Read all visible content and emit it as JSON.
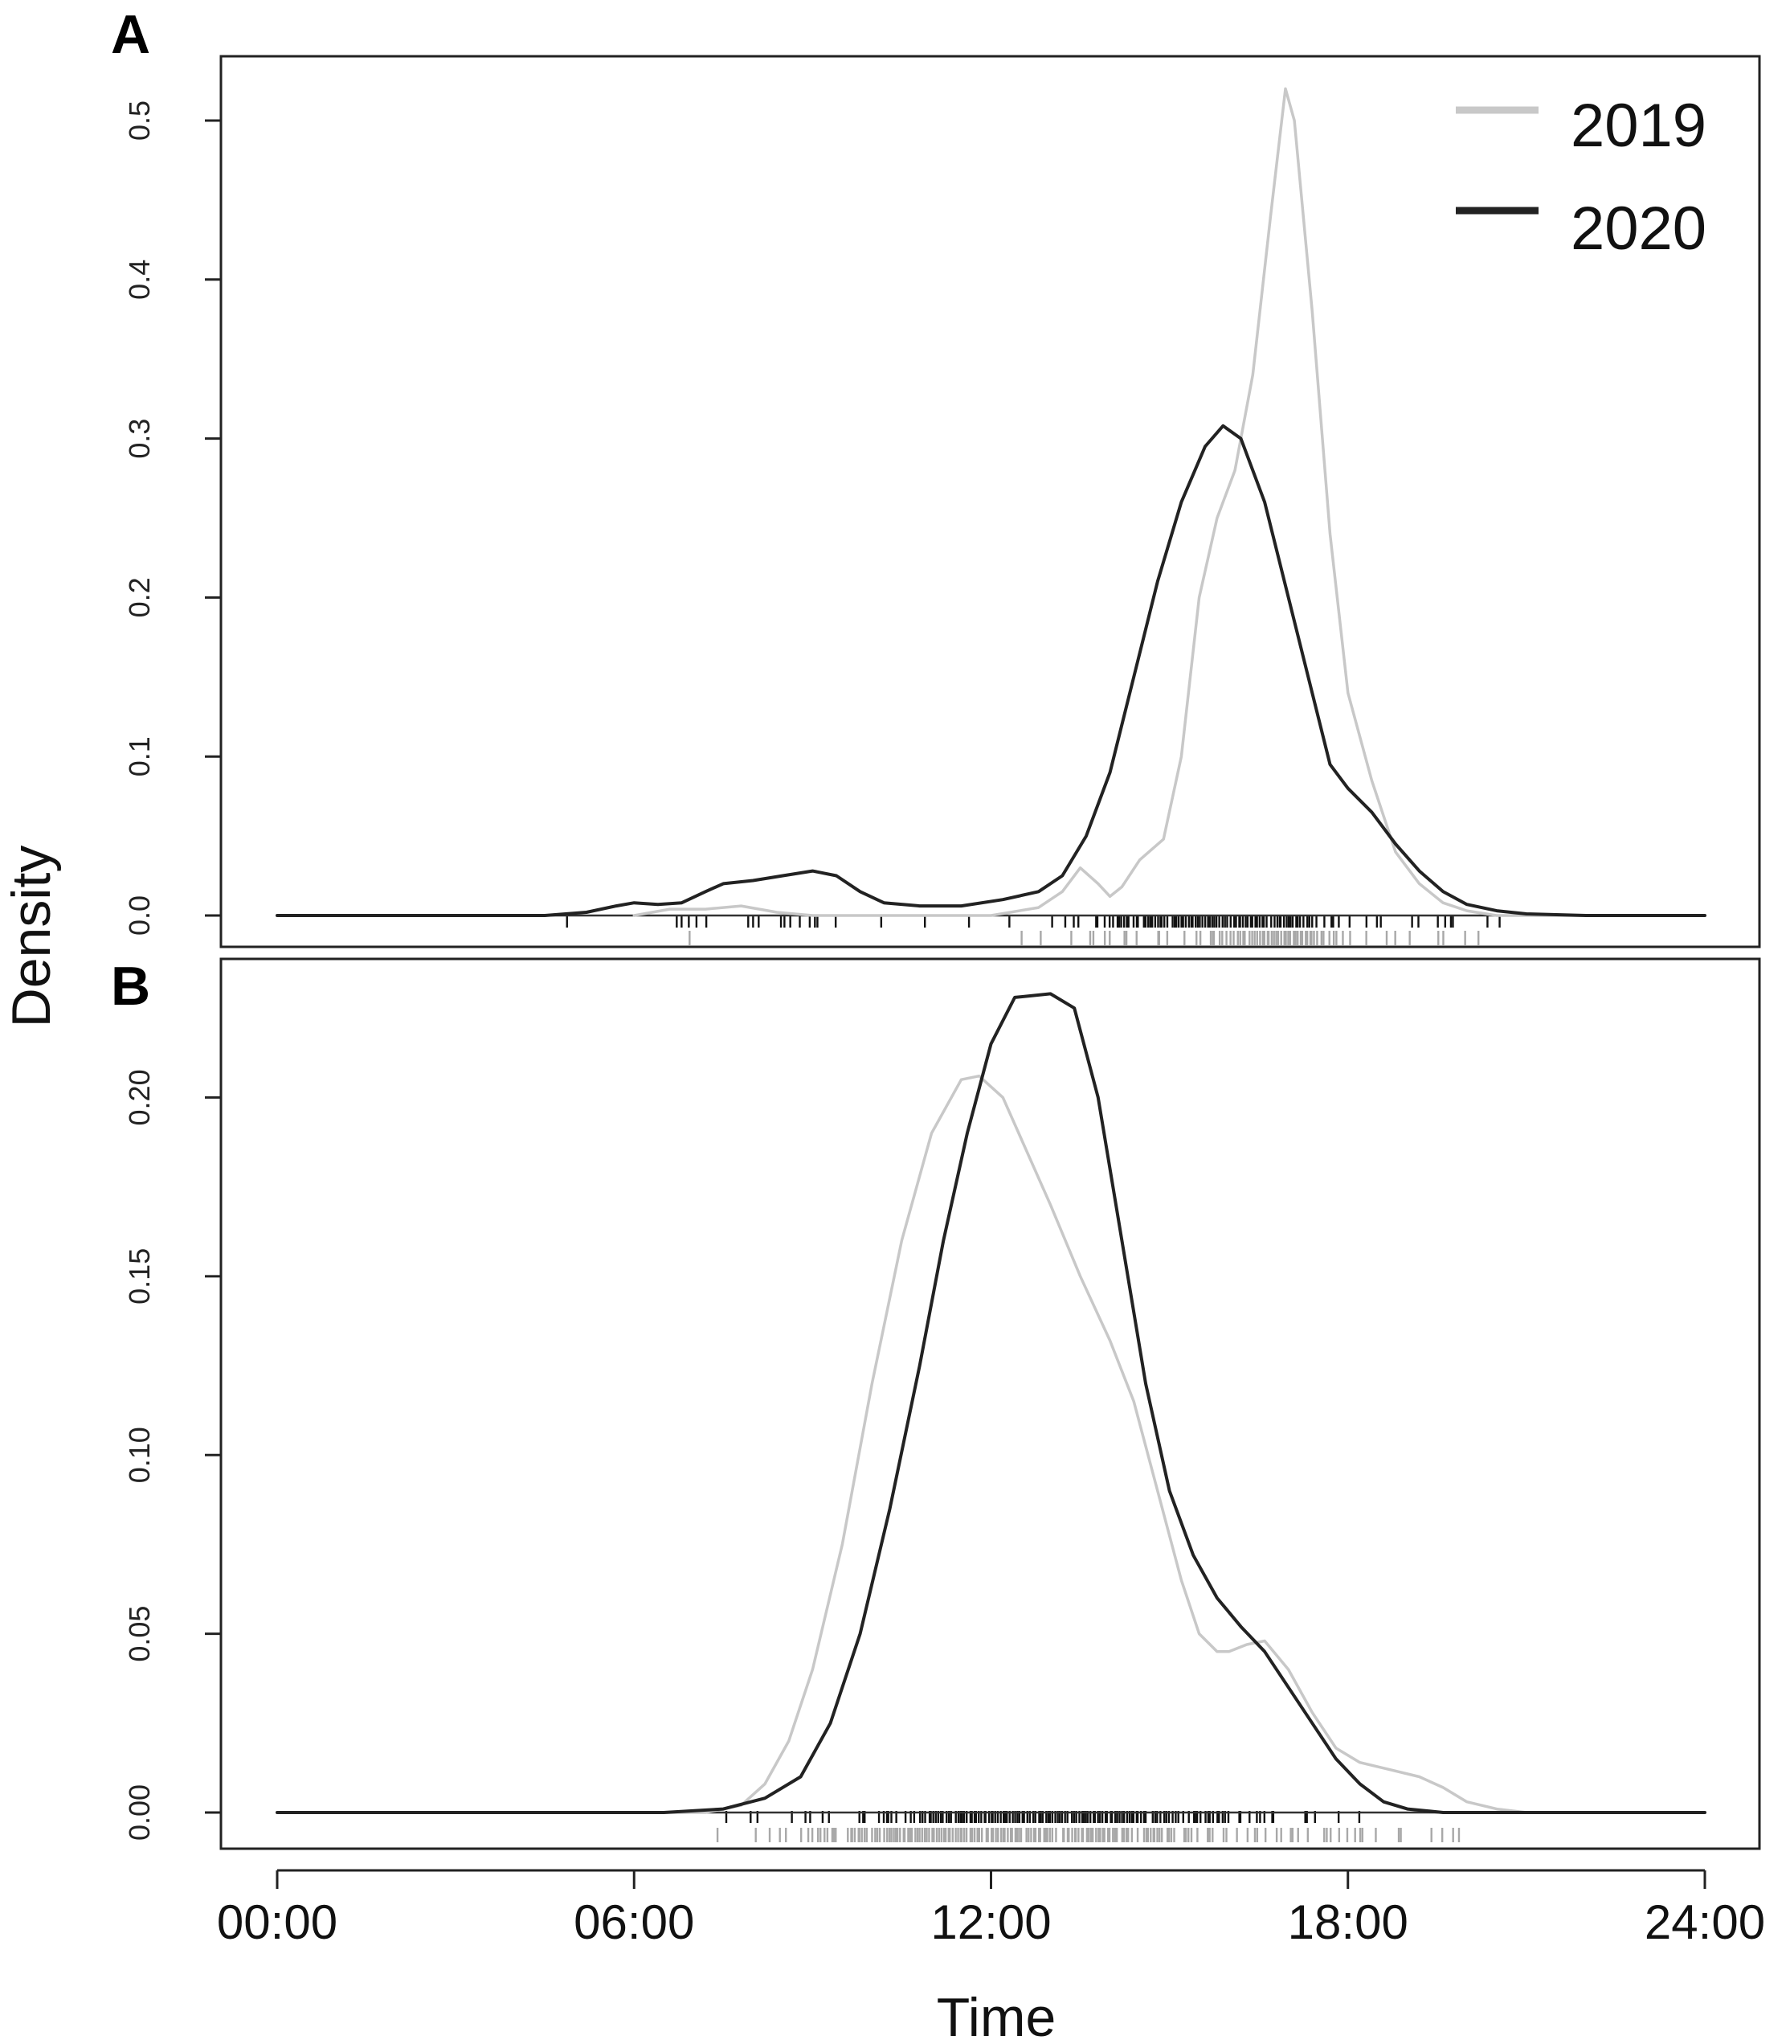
{
  "figure": {
    "xlabel": "Time",
    "ylabel": "Density",
    "x_ticks": [
      {
        "value": 0,
        "label": "00:00"
      },
      {
        "value": 6,
        "label": "06:00"
      },
      {
        "value": 12,
        "label": "12:00"
      },
      {
        "value": 18,
        "label": "18:00"
      },
      {
        "value": 24,
        "label": "24:00"
      }
    ]
  },
  "legend": {
    "placement": "top-right",
    "items": [
      {
        "label": "2019",
        "color": "#c8c8c8"
      },
      {
        "label": "2020",
        "color": "#222222"
      }
    ]
  },
  "chart_data": [
    {
      "type": "line",
      "panel": "A",
      "xlabel": "Time",
      "ylabel": "Density",
      "xlim": [
        0,
        24
      ],
      "ylim": [
        0,
        0.5
      ],
      "yticks": [
        {
          "value": 0.0,
          "label": "0.0"
        },
        {
          "value": 0.1,
          "label": "0.1"
        },
        {
          "value": 0.2,
          "label": "0.2"
        },
        {
          "value": 0.3,
          "label": "0.3"
        },
        {
          "value": 0.4,
          "label": "0.4"
        },
        {
          "value": 0.5,
          "label": "0.5"
        }
      ],
      "series": [
        {
          "name": "2019",
          "color": "#c8c8c8",
          "points": [
            [
              6.0,
              0.0
            ],
            [
              6.6,
              0.004
            ],
            [
              7.2,
              0.004
            ],
            [
              7.8,
              0.006
            ],
            [
              8.4,
              0.002
            ],
            [
              9.0,
              0.0
            ],
            [
              10.0,
              0.0
            ],
            [
              12.0,
              0.0
            ],
            [
              12.8,
              0.005
            ],
            [
              13.2,
              0.015
            ],
            [
              13.5,
              0.03
            ],
            [
              13.8,
              0.02
            ],
            [
              14.0,
              0.012
            ],
            [
              14.2,
              0.018
            ],
            [
              14.5,
              0.035
            ],
            [
              14.9,
              0.048
            ],
            [
              15.2,
              0.1
            ],
            [
              15.5,
              0.2
            ],
            [
              15.8,
              0.25
            ],
            [
              16.1,
              0.28
            ],
            [
              16.4,
              0.34
            ],
            [
              16.7,
              0.44
            ],
            [
              16.95,
              0.52
            ],
            [
              17.1,
              0.5
            ],
            [
              17.4,
              0.38
            ],
            [
              17.7,
              0.24
            ],
            [
              18.0,
              0.14
            ],
            [
              18.4,
              0.085
            ],
            [
              18.8,
              0.04
            ],
            [
              19.2,
              0.02
            ],
            [
              19.6,
              0.008
            ],
            [
              20.0,
              0.003
            ],
            [
              20.5,
              0.0
            ],
            [
              24.0,
              0.0
            ]
          ]
        },
        {
          "name": "2020",
          "color": "#222222",
          "points": [
            [
              0.0,
              0.0
            ],
            [
              4.5,
              0.0
            ],
            [
              5.2,
              0.002
            ],
            [
              5.7,
              0.006
            ],
            [
              6.0,
              0.008
            ],
            [
              6.4,
              0.007
            ],
            [
              6.8,
              0.008
            ],
            [
              7.2,
              0.015
            ],
            [
              7.5,
              0.02
            ],
            [
              8.0,
              0.022
            ],
            [
              8.5,
              0.025
            ],
            [
              9.0,
              0.028
            ],
            [
              9.4,
              0.025
            ],
            [
              9.8,
              0.015
            ],
            [
              10.2,
              0.008
            ],
            [
              10.8,
              0.006
            ],
            [
              11.5,
              0.006
            ],
            [
              12.2,
              0.01
            ],
            [
              12.8,
              0.015
            ],
            [
              13.2,
              0.025
            ],
            [
              13.6,
              0.05
            ],
            [
              14.0,
              0.09
            ],
            [
              14.4,
              0.15
            ],
            [
              14.8,
              0.21
            ],
            [
              15.2,
              0.26
            ],
            [
              15.6,
              0.295
            ],
            [
              15.9,
              0.308
            ],
            [
              16.2,
              0.3
            ],
            [
              16.6,
              0.26
            ],
            [
              17.0,
              0.2
            ],
            [
              17.4,
              0.14
            ],
            [
              17.7,
              0.095
            ],
            [
              18.0,
              0.08
            ],
            [
              18.4,
              0.065
            ],
            [
              18.8,
              0.045
            ],
            [
              19.2,
              0.028
            ],
            [
              19.6,
              0.015
            ],
            [
              20.0,
              0.007
            ],
            [
              20.5,
              0.003
            ],
            [
              21.0,
              0.001
            ],
            [
              22.0,
              0.0
            ],
            [
              24.0,
              0.0
            ]
          ]
        }
      ]
    },
    {
      "type": "line",
      "panel": "B",
      "xlabel": "Time",
      "ylabel": "Density",
      "xlim": [
        0,
        24
      ],
      "ylim": [
        0,
        0.23
      ],
      "yticks": [
        {
          "value": 0.0,
          "label": "0.00"
        },
        {
          "value": 0.05,
          "label": "0.05"
        },
        {
          "value": 0.1,
          "label": "0.10"
        },
        {
          "value": 0.15,
          "label": "0.15"
        },
        {
          "value": 0.2,
          "label": "0.20"
        }
      ],
      "series": [
        {
          "name": "2019",
          "color": "#c8c8c8",
          "points": [
            [
              0.0,
              0.0
            ],
            [
              7.2,
              0.0
            ],
            [
              7.8,
              0.002
            ],
            [
              8.2,
              0.008
            ],
            [
              8.6,
              0.02
            ],
            [
              9.0,
              0.04
            ],
            [
              9.5,
              0.075
            ],
            [
              10.0,
              0.12
            ],
            [
              10.5,
              0.16
            ],
            [
              11.0,
              0.19
            ],
            [
              11.5,
              0.205
            ],
            [
              11.8,
              0.206
            ],
            [
              12.2,
              0.2
            ],
            [
              12.6,
              0.185
            ],
            [
              13.0,
              0.17
            ],
            [
              13.5,
              0.15
            ],
            [
              14.0,
              0.132
            ],
            [
              14.4,
              0.115
            ],
            [
              14.8,
              0.09
            ],
            [
              15.2,
              0.065
            ],
            [
              15.5,
              0.05
            ],
            [
              15.8,
              0.045
            ],
            [
              16.0,
              0.045
            ],
            [
              16.3,
              0.047
            ],
            [
              16.6,
              0.048
            ],
            [
              17.0,
              0.04
            ],
            [
              17.4,
              0.028
            ],
            [
              17.8,
              0.018
            ],
            [
              18.2,
              0.014
            ],
            [
              18.7,
              0.012
            ],
            [
              19.2,
              0.01
            ],
            [
              19.6,
              0.007
            ],
            [
              20.0,
              0.003
            ],
            [
              20.5,
              0.001
            ],
            [
              21.0,
              0.0
            ],
            [
              24.0,
              0.0
            ]
          ]
        },
        {
          "name": "2020",
          "color": "#222222",
          "points": [
            [
              0.0,
              0.0
            ],
            [
              6.5,
              0.0
            ],
            [
              7.5,
              0.001
            ],
            [
              8.2,
              0.004
            ],
            [
              8.8,
              0.01
            ],
            [
              9.3,
              0.025
            ],
            [
              9.8,
              0.05
            ],
            [
              10.3,
              0.085
            ],
            [
              10.8,
              0.125
            ],
            [
              11.2,
              0.16
            ],
            [
              11.6,
              0.19
            ],
            [
              12.0,
              0.215
            ],
            [
              12.4,
              0.228
            ],
            [
              13.0,
              0.229
            ],
            [
              13.4,
              0.225
            ],
            [
              13.8,
              0.2
            ],
            [
              14.2,
              0.16
            ],
            [
              14.6,
              0.12
            ],
            [
              15.0,
              0.09
            ],
            [
              15.4,
              0.072
            ],
            [
              15.8,
              0.06
            ],
            [
              16.2,
              0.052
            ],
            [
              16.6,
              0.045
            ],
            [
              17.0,
              0.035
            ],
            [
              17.4,
              0.025
            ],
            [
              17.8,
              0.015
            ],
            [
              18.2,
              0.008
            ],
            [
              18.6,
              0.003
            ],
            [
              19.0,
              0.001
            ],
            [
              19.6,
              0.0
            ],
            [
              24.0,
              0.0
            ]
          ]
        }
      ]
    }
  ]
}
